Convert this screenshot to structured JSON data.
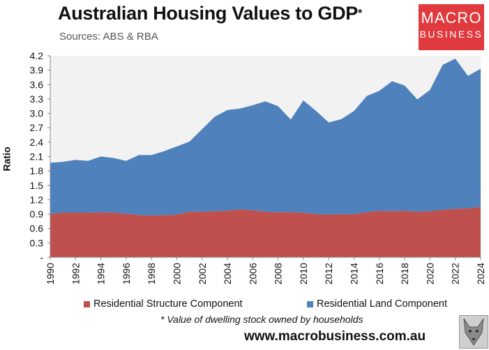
{
  "header": {
    "title": "Australian Housing Values to GDP",
    "title_mark": "*",
    "subtitle": "Sources: ABS & RBA"
  },
  "logo": {
    "line1": "MACRO",
    "line2": "BUSINESS",
    "color": "#e03a3e"
  },
  "footer": {
    "footnote": "* Value of dwelling stock owned by households",
    "url": "www.macrobusiness.com.au"
  },
  "chart_data": {
    "type": "area",
    "stacked": true,
    "ylabel": "Ratio",
    "xlabel": "",
    "ylim": [
      0,
      4.2
    ],
    "yticks": [
      "-",
      "0.3",
      "0.6",
      "0.9",
      "1.2",
      "1.5",
      "1.8",
      "2.1",
      "2.4",
      "2.7",
      "3.0",
      "3.3",
      "3.6",
      "3.9",
      "4.2"
    ],
    "xticks": [
      "1990",
      "1992",
      "1994",
      "1996",
      "1998",
      "2000",
      "2002",
      "2004",
      "2006",
      "2008",
      "2010",
      "2012",
      "2014",
      "2016",
      "2018",
      "2020",
      "2022",
      "2024"
    ],
    "x": [
      1990,
      1991,
      1992,
      1993,
      1994,
      1995,
      1996,
      1997,
      1998,
      1999,
      2000,
      2001,
      2002,
      2003,
      2004,
      2005,
      2006,
      2007,
      2008,
      2009,
      2010,
      2011,
      2012,
      2013,
      2014,
      2015,
      2016,
      2017,
      2018,
      2019,
      2020,
      2021,
      2022,
      2023,
      2024
    ],
    "grid": false,
    "plot_background": "#f2f2f2",
    "legend_position": "bottom",
    "series": [
      {
        "name": "Residential Structure Component",
        "color": "#c0504d",
        "values": [
          0.9,
          0.93,
          0.93,
          0.93,
          0.94,
          0.93,
          0.91,
          0.88,
          0.87,
          0.88,
          0.89,
          0.95,
          0.95,
          0.96,
          0.97,
          1.0,
          0.98,
          0.95,
          0.94,
          0.94,
          0.93,
          0.9,
          0.89,
          0.9,
          0.9,
          0.94,
          0.97,
          0.96,
          0.97,
          0.95,
          0.96,
          0.99,
          1.01,
          1.02,
          1.05
        ]
      },
      {
        "name": "Residential Land Component",
        "color": "#4f81bd",
        "values": [
          1.07,
          1.06,
          1.1,
          1.08,
          1.16,
          1.14,
          1.1,
          1.25,
          1.26,
          1.33,
          1.42,
          1.46,
          1.72,
          1.97,
          2.1,
          2.1,
          2.19,
          2.3,
          2.21,
          1.93,
          2.34,
          2.15,
          1.92,
          1.98,
          2.15,
          2.42,
          2.5,
          2.71,
          2.61,
          2.34,
          2.53,
          3.02,
          3.13,
          2.76,
          2.88
        ]
      }
    ]
  }
}
